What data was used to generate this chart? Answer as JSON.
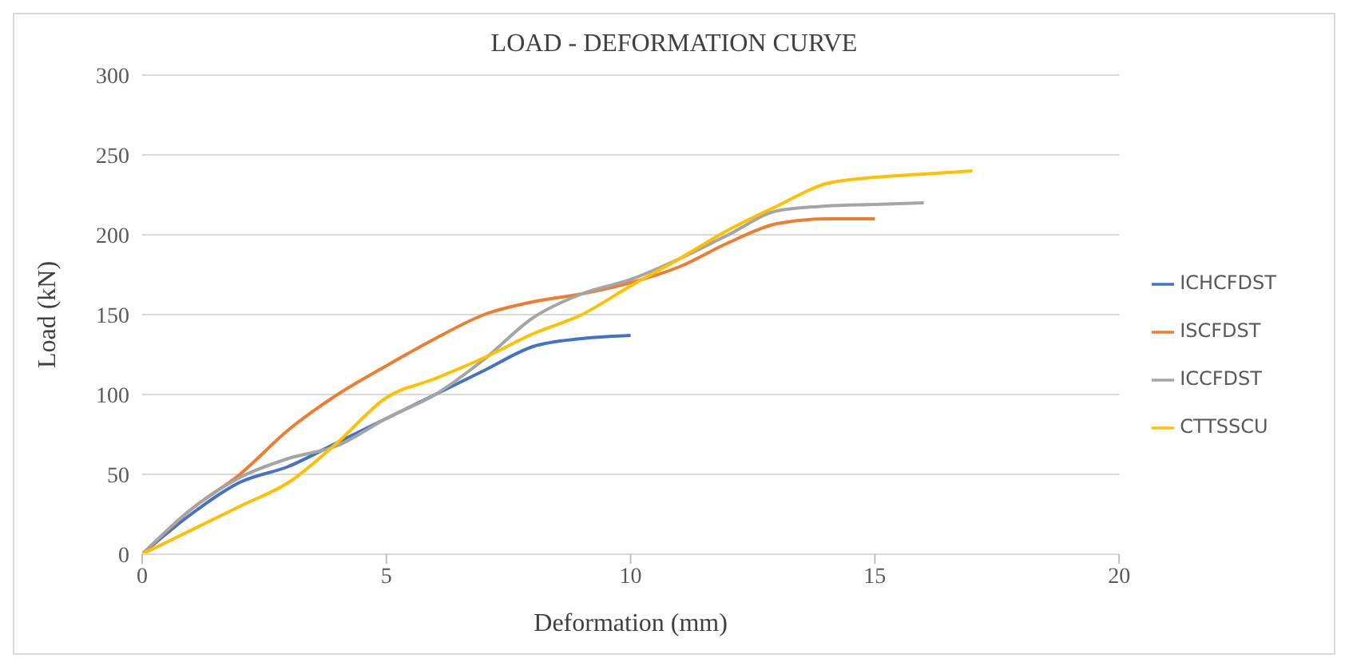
{
  "chart_data": {
    "type": "line",
    "title": "LOAD - DEFORMATION CURVE",
    "xlabel": "Deformation (mm)",
    "ylabel": "Load (kN)",
    "xlim": [
      0,
      20
    ],
    "xticks": [
      0,
      5,
      10,
      15,
      20
    ],
    "ylim": [
      0,
      300
    ],
    "yticks": [
      0,
      50,
      100,
      150,
      200,
      250,
      300
    ],
    "grid": "y",
    "legend": "right",
    "marker": "none",
    "line_style": "solid",
    "series": [
      {
        "name": "ICHCFDST",
        "color": "#4472c4",
        "x": [
          0,
          1,
          2,
          3,
          4,
          5,
          6,
          7,
          8,
          9,
          10
        ],
        "values": [
          0,
          25,
          45,
          55,
          70,
          85,
          100,
          115,
          130,
          135,
          137
        ]
      },
      {
        "name": "ISCFDST",
        "color": "#ed7d31",
        "x": [
          0,
          1,
          2,
          3,
          4,
          5,
          6,
          7,
          8,
          9,
          10,
          11,
          12,
          13,
          14,
          15
        ],
        "values": [
          0,
          28,
          50,
          78,
          100,
          118,
          135,
          150,
          158,
          163,
          170,
          180,
          195,
          207,
          210,
          210
        ]
      },
      {
        "name": "ICCFDST",
        "color": "#a5a5a5",
        "x": [
          0,
          1,
          2,
          3,
          4,
          5,
          6,
          7,
          8,
          9,
          10,
          11,
          12,
          13,
          14,
          15,
          16
        ],
        "values": [
          0,
          28,
          48,
          60,
          68,
          85,
          100,
          122,
          148,
          163,
          172,
          185,
          200,
          215,
          218,
          219,
          220
        ]
      },
      {
        "name": "CTTSSCU",
        "color": "#ffc000",
        "x": [
          0,
          1,
          2,
          3,
          4,
          5,
          6,
          7,
          8,
          9,
          10,
          11,
          12,
          13,
          14,
          15,
          16,
          17
        ],
        "values": [
          0,
          15,
          30,
          45,
          70,
          98,
          110,
          123,
          138,
          150,
          168,
          185,
          203,
          218,
          232,
          236,
          238,
          240
        ]
      }
    ]
  }
}
